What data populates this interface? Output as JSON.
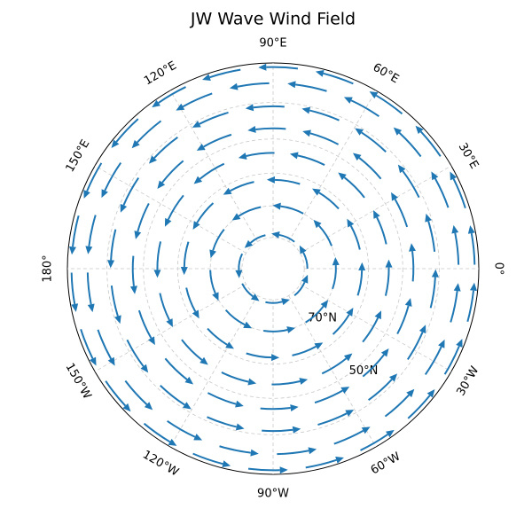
{
  "chart_data": {
    "type": "polar_wind",
    "title": "JW Wave Wind Field",
    "boundary_lat": 30,
    "lat_grid": [
      80,
      70,
      60,
      50,
      40
    ],
    "lat_labels": [
      {
        "value": 70,
        "label": "70°N"
      },
      {
        "value": 50,
        "label": "50°N"
      }
    ],
    "lon_ticks": [
      {
        "value": 0,
        "label": "0°"
      },
      {
        "value": 30,
        "label": "30°E"
      },
      {
        "value": 60,
        "label": "60°E"
      },
      {
        "value": 90,
        "label": "90°E"
      },
      {
        "value": 120,
        "label": "120°E"
      },
      {
        "value": 150,
        "label": "150°E"
      },
      {
        "value": 180,
        "label": "180°"
      },
      {
        "value": -150,
        "label": "150°W"
      },
      {
        "value": -120,
        "label": "120°W"
      },
      {
        "value": -90,
        "label": "90°W"
      },
      {
        "value": -60,
        "label": "60°W"
      },
      {
        "value": -30,
        "label": "30°W"
      }
    ],
    "arrow_color": "#1f77b4",
    "rings": [
      {
        "lat": 79,
        "count": 7
      },
      {
        "lat": 70,
        "count": 9
      },
      {
        "lat": 62,
        "count": 12
      },
      {
        "lat": 54,
        "count": 14
      },
      {
        "lat": 47,
        "count": 16
      },
      {
        "lat": 41,
        "count": 18
      },
      {
        "lat": 35,
        "count": 20
      },
      {
        "lat": 31,
        "count": 22
      }
    ]
  }
}
